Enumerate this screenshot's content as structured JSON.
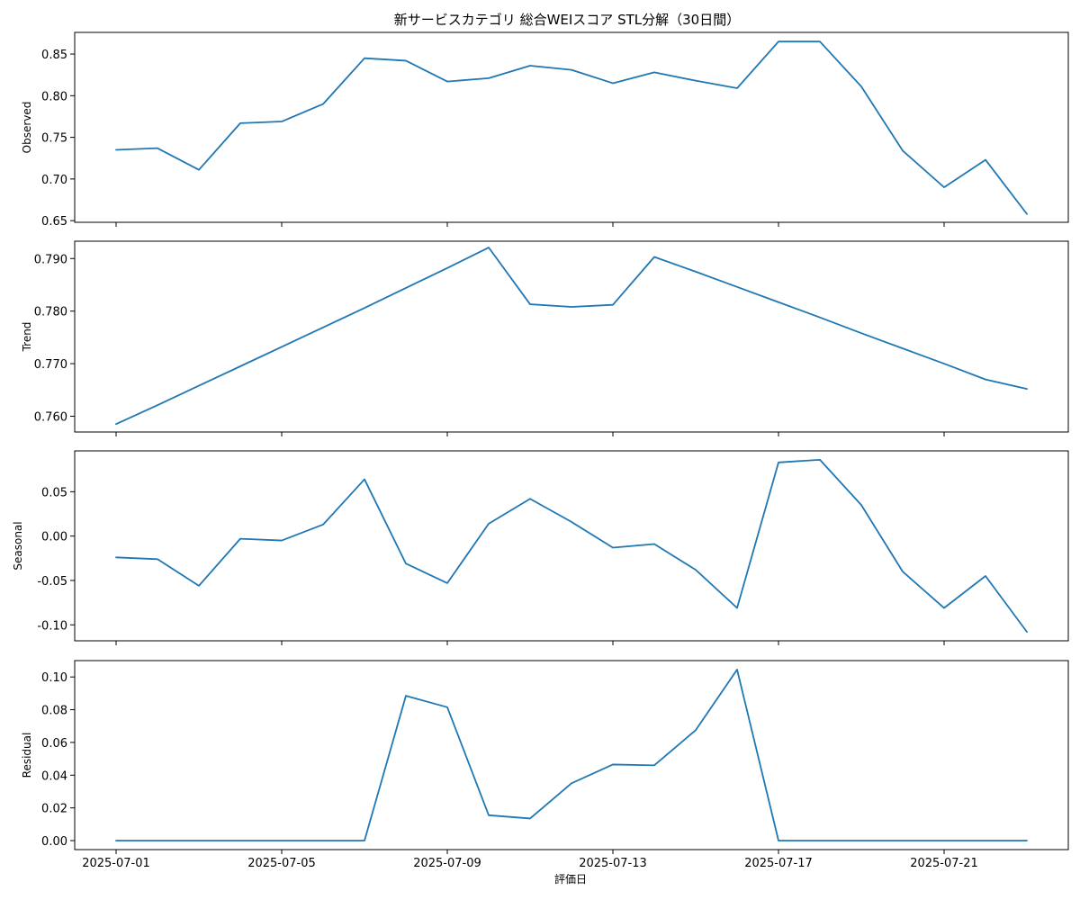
{
  "title": "新サービスカテゴリ 総合WEIスコア STL分解（30日間）",
  "xlabel": "評価日",
  "colors": {
    "line": "#1f77b4",
    "axis": "#000000",
    "background": "#ffffff"
  },
  "chart_data": {
    "type": "line",
    "grid": false,
    "x": [
      "2025-07-01",
      "2025-07-02",
      "2025-07-03",
      "2025-07-04",
      "2025-07-05",
      "2025-07-06",
      "2025-07-07",
      "2025-07-08",
      "2025-07-09",
      "2025-07-10",
      "2025-07-11",
      "2025-07-12",
      "2025-07-13",
      "2025-07-14",
      "2025-07-15",
      "2025-07-16",
      "2025-07-17",
      "2025-07-18",
      "2025-07-19",
      "2025-07-20",
      "2025-07-21",
      "2025-07-22",
      "2025-07-23"
    ],
    "xticks": [
      "2025-07-01",
      "2025-07-05",
      "2025-07-09",
      "2025-07-13",
      "2025-07-17",
      "2025-07-21"
    ],
    "xlim": [
      "2025-06-30",
      "2025-07-24"
    ],
    "panels": [
      {
        "name": "observed",
        "ylabel": "Observed",
        "ylim": [
          0.648,
          0.876
        ],
        "yticks": [
          "0.65",
          "0.70",
          "0.75",
          "0.80",
          "0.85"
        ],
        "values": [
          0.735,
          0.737,
          0.711,
          0.767,
          0.769,
          0.79,
          0.845,
          0.842,
          0.817,
          0.821,
          0.836,
          0.831,
          0.815,
          0.828,
          0.818,
          0.809,
          0.865,
          0.865,
          0.811,
          0.734,
          0.69,
          0.723,
          0.658
        ]
      },
      {
        "name": "trend",
        "ylabel": "Trend",
        "ylim": [
          0.757,
          0.7933
        ],
        "yticks": [
          "0.760",
          "0.770",
          "0.780",
          "0.790"
        ],
        "values": [
          0.7585,
          0.7621,
          0.7658,
          0.7695,
          0.7732,
          0.7769,
          0.7806,
          0.7844,
          0.7882,
          0.7921,
          0.7813,
          0.7808,
          0.7812,
          0.7903,
          0.7875,
          0.7846,
          0.7817,
          0.7788,
          0.7758,
          0.7729,
          0.77,
          0.767,
          0.7652
        ]
      },
      {
        "name": "seasonal",
        "ylabel": "Seasonal",
        "ylim": [
          -0.118,
          0.096
        ],
        "yticks": [
          "-0.10",
          "-0.05",
          "0.00",
          "0.05"
        ],
        "values": [
          -0.024,
          -0.026,
          -0.056,
          -0.003,
          -0.005,
          0.013,
          0.064,
          -0.031,
          -0.053,
          0.014,
          0.042,
          0.016,
          -0.013,
          -0.009,
          -0.038,
          -0.081,
          0.083,
          0.086,
          0.035,
          -0.04,
          -0.081,
          -0.045,
          -0.108
        ]
      },
      {
        "name": "residual",
        "ylabel": "Residual",
        "ylim": [
          -0.0055,
          0.11
        ],
        "yticks": [
          "0.00",
          "0.02",
          "0.04",
          "0.06",
          "0.08",
          "0.10"
        ],
        "values": [
          0,
          0,
          0,
          0,
          0,
          0,
          0,
          0.0885,
          0.0815,
          0.0155,
          0.0135,
          0.035,
          0.0465,
          0.046,
          0.0675,
          0.1045,
          0,
          0,
          0,
          0,
          0,
          0,
          0
        ]
      }
    ]
  }
}
